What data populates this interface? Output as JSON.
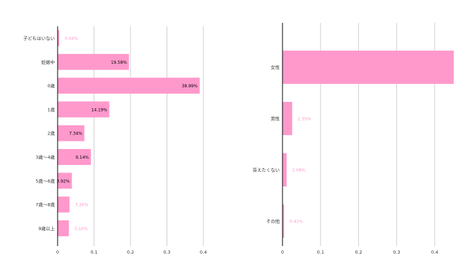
{
  "colors": {
    "bar": "#ff99cc",
    "grid": "#d0d0d0",
    "axis": "#000000",
    "label_dark": "#000000",
    "label_light": "#ff99cc"
  },
  "chart_data": [
    {
      "type": "bar",
      "orientation": "horizontal",
      "categories": [
        "子どもはいない",
        "妊娠中",
        "0歳",
        "1歳",
        "2歳",
        "3歳〜4歳",
        "5歳〜6歳",
        "7歳〜8歳",
        "9歳以上"
      ],
      "values": [
        0.0044,
        0.1958,
        0.3899,
        0.1419,
        0.0734,
        0.0914,
        0.0392,
        0.0326,
        0.031
      ],
      "data_labels": [
        "0.44%",
        "19.58%",
        "38.99%",
        "14.19%",
        "7.34%",
        "9.14%",
        "3.92%",
        "3.26%",
        "3.10%"
      ],
      "label_inside": [
        false,
        true,
        true,
        true,
        true,
        true,
        true,
        false,
        false
      ],
      "xlim": [
        0,
        0.4
      ],
      "xticks": [
        "0",
        "0.1",
        "0.2",
        "0.3",
        "0.4"
      ],
      "grid": true
    },
    {
      "type": "bar",
      "orientation": "horizontal",
      "categories": [
        "女性",
        "男性",
        "答えたくない",
        "その他"
      ],
      "values": [
        0.4502,
        0.0255,
        0.0108,
        0.0042
      ],
      "data_labels": [
        "",
        "2.55%",
        "1.08%",
        "0.42%"
      ],
      "label_inside": [
        true,
        false,
        false,
        false
      ],
      "xlim": [
        0,
        0.45
      ],
      "xticks": [
        "0",
        "0.1",
        "0.2",
        "0.3",
        "0.4"
      ],
      "grid": true
    }
  ]
}
